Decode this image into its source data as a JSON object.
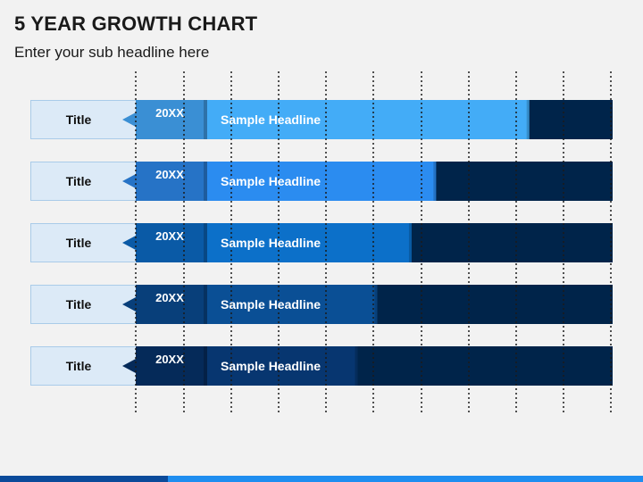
{
  "header": {
    "title": "5 YEAR GROWTH CHART",
    "subtitle": "Enter your sub headline here"
  },
  "colors": {
    "track": "#00244a",
    "title_box_fill": "#dceaf7",
    "title_box_border": "#a9cbe9",
    "gridline": "#1a1a1a",
    "footer_dark": "#0b4a9a",
    "footer_light": "#1f8ef0"
  },
  "chart_data": {
    "type": "bar",
    "orientation": "horizontal",
    "grid": true,
    "xlim": [
      0,
      100
    ],
    "rows": [
      {
        "title": "Title",
        "year": "20XX",
        "headline": "Sample Headline",
        "value": 83,
        "bar_color": "#43acf7",
        "tag_color": "#3a8fd4"
      },
      {
        "title": "Title",
        "year": "20XX",
        "headline": "Sample Headline",
        "value": 64,
        "bar_color": "#2b8cf0",
        "tag_color": "#2673c6"
      },
      {
        "title": "Title",
        "year": "20XX",
        "headline": "Sample Headline",
        "value": 59,
        "bar_color": "#0c70c9",
        "tag_color": "#0a5aa6"
      },
      {
        "title": "Title",
        "year": "20XX",
        "headline": "Sample Headline",
        "value": 52,
        "bar_color": "#0a4f95",
        "tag_color": "#083f7a"
      },
      {
        "title": "Title",
        "year": "20XX",
        "headline": "Sample Headline",
        "value": 48,
        "bar_color": "#073670",
        "tag_color": "#052a59"
      }
    ]
  }
}
